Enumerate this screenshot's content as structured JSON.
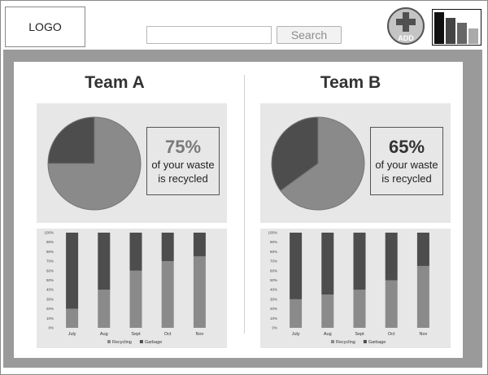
{
  "header": {
    "logo_text": "LOGO",
    "search": {
      "value": "",
      "placeholder": "",
      "button_label": "Search"
    },
    "add_label": "ADD"
  },
  "teams": [
    {
      "title": "Team A",
      "percent_label": "75%",
      "percent_value": 75,
      "percent_color": "#7a7a7a",
      "caption_line1": "of your waste",
      "caption_line2": "is recycled"
    },
    {
      "title": "Team B",
      "percent_label": "65%",
      "percent_value": 65,
      "percent_color": "#333333",
      "caption_line1": "of your waste",
      "caption_line2": "is recycled"
    }
  ],
  "chart_data": [
    {
      "type": "pie",
      "labels": [
        "Recycling",
        "Garbage"
      ],
      "values": [
        75,
        25
      ],
      "colors": [
        "#8a8a8a",
        "#4d4d4d"
      ]
    },
    {
      "type": "bar",
      "stacked": true,
      "categories": [
        "July",
        "Aug",
        "Sept",
        "Oct",
        "Nov"
      ],
      "ylim": [
        0,
        100
      ],
      "yticks": [
        "0%",
        "10%",
        "20%",
        "30%",
        "40%",
        "50%",
        "60%",
        "70%",
        "80%",
        "90%",
        "100%"
      ],
      "series": [
        {
          "name": "Recycling",
          "values": [
            20,
            40,
            60,
            70,
            75
          ],
          "color": "#8a8a8a"
        },
        {
          "name": "Garbage",
          "values": [
            80,
            60,
            40,
            30,
            25
          ],
          "color": "#4d4d4d"
        }
      ],
      "legend": "bottom"
    },
    {
      "type": "pie",
      "labels": [
        "Recycling",
        "Garbage"
      ],
      "values": [
        65,
        35
      ],
      "colors": [
        "#8a8a8a",
        "#4d4d4d"
      ]
    },
    {
      "type": "bar",
      "stacked": true,
      "categories": [
        "July",
        "Aug",
        "Sept",
        "Oct",
        "Nov"
      ],
      "ylim": [
        0,
        100
      ],
      "yticks": [
        "0%",
        "10%",
        "20%",
        "30%",
        "40%",
        "50%",
        "60%",
        "70%",
        "80%",
        "90%",
        "100%"
      ],
      "series": [
        {
          "name": "Recycling",
          "values": [
            30,
            35,
            40,
            50,
            65
          ],
          "color": "#8a8a8a"
        },
        {
          "name": "Garbage",
          "values": [
            70,
            65,
            60,
            50,
            35
          ],
          "color": "#4d4d4d"
        }
      ],
      "legend": "bottom"
    }
  ]
}
